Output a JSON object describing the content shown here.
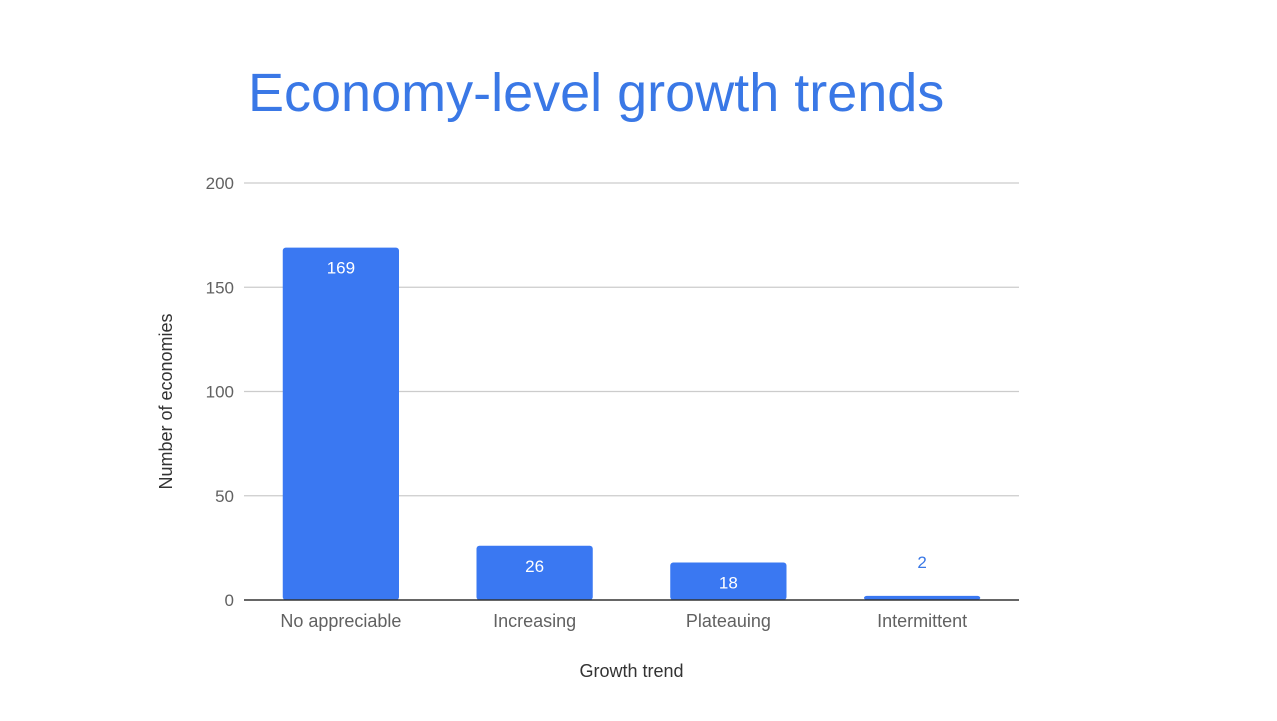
{
  "chart_data": {
    "type": "bar",
    "title": "Economy-level growth trends",
    "xlabel": "Growth trend",
    "ylabel": "Number of economies",
    "categories": [
      "No appreciable",
      "Increasing",
      "Plateauing",
      "Intermittent"
    ],
    "values": [
      169,
      26,
      18,
      2
    ],
    "ylim": [
      0,
      200
    ],
    "yticks": [
      "0",
      "50",
      "100",
      "150",
      "200"
    ],
    "data_labels": [
      "169",
      "26",
      "18",
      "2"
    ],
    "grid": true,
    "legend": "none",
    "colors": {
      "bar": "#3a78f2",
      "title": "#3a78e6",
      "label_inside": "#ffffff",
      "label_outside": "#3a78e6",
      "gridline": "#cccccc",
      "baseline": "#333333"
    }
  }
}
